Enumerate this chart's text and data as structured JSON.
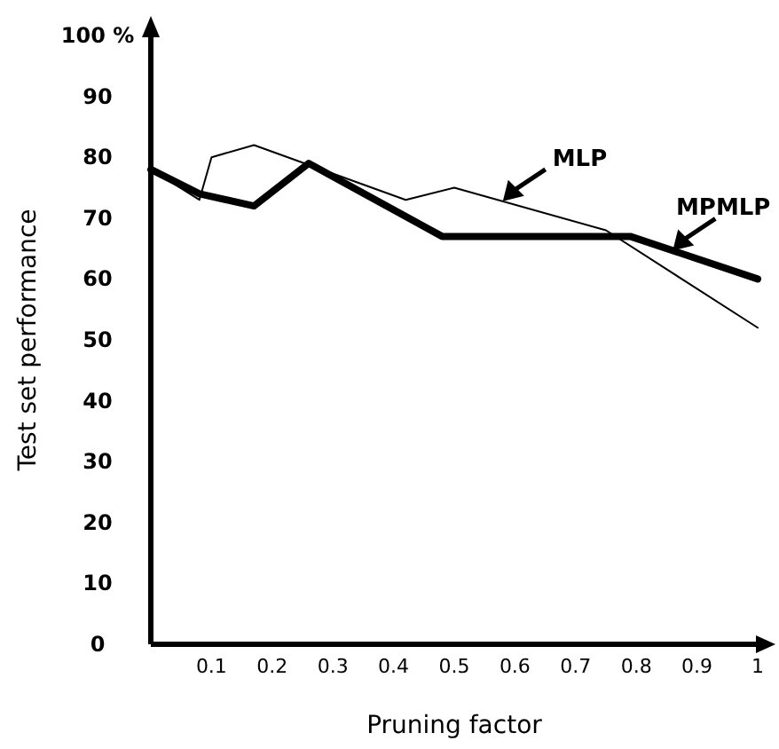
{
  "chart_data": {
    "type": "line",
    "xlabel": "Pruning factor",
    "ylabel": "Test set performance",
    "xlim": [
      0,
      1
    ],
    "ylim": [
      0,
      100
    ],
    "xticks": [
      {
        "value": 0.1,
        "label": "0.1"
      },
      {
        "value": 0.2,
        "label": "0.2"
      },
      {
        "value": 0.3,
        "label": "0.3"
      },
      {
        "value": 0.4,
        "label": "0.4"
      },
      {
        "value": 0.5,
        "label": "0.5"
      },
      {
        "value": 0.6,
        "label": "0.6"
      },
      {
        "value": 0.7,
        "label": "0.7"
      },
      {
        "value": 0.8,
        "label": "0.8"
      },
      {
        "value": 0.9,
        "label": "0.9"
      },
      1
    ],
    "yticks": [
      0,
      10,
      20,
      30,
      40,
      50,
      60,
      70,
      80,
      90,
      {
        "value": 100,
        "label": "100 %"
      }
    ],
    "grid": false,
    "series": [
      {
        "name": "MLP",
        "color": "#000000",
        "x": [
          0,
          0.08,
          0.1,
          0.17,
          0.42,
          0.5,
          0.75,
          1
        ],
        "values": [
          78,
          73,
          80,
          82,
          73,
          75,
          68,
          52
        ]
      },
      {
        "name": "MPMLP",
        "color": "#000000",
        "x": [
          0,
          0.08,
          0.17,
          0.26,
          0.48,
          0.79,
          1
        ],
        "values": [
          78,
          74,
          72,
          79,
          67,
          67,
          60
        ]
      }
    ]
  }
}
